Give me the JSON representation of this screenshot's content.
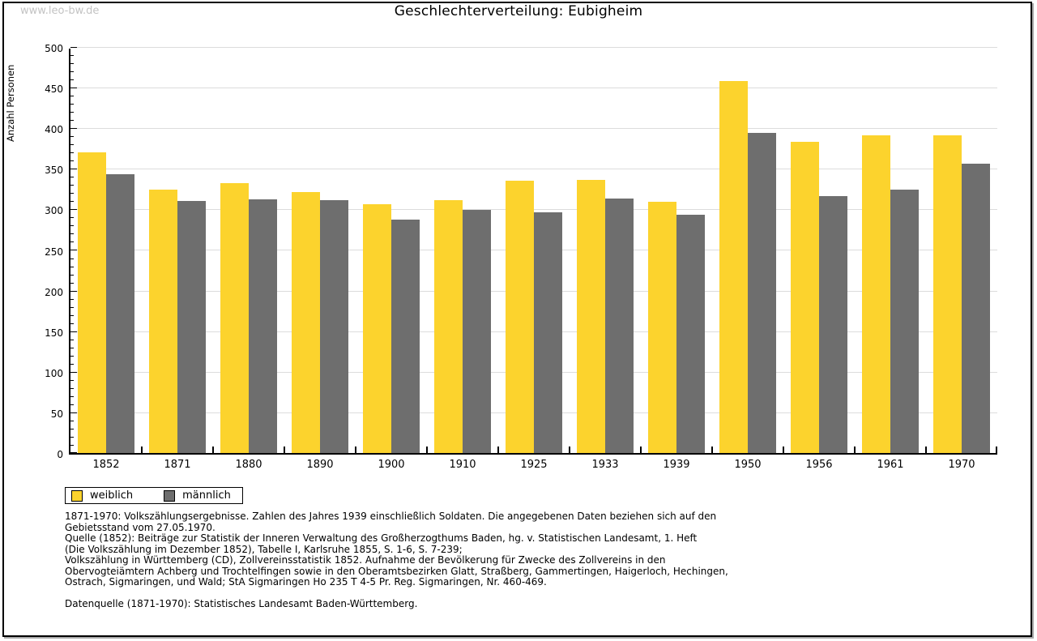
{
  "watermark": "www.leo-bw.de",
  "title": "Geschlechterverteilung: Eubigheim",
  "chart_data": {
    "type": "bar",
    "title": "Geschlechterverteilung: Eubigheim",
    "xlabel": "",
    "ylabel": "Anzahl Personen",
    "ylim": [
      0,
      500
    ],
    "ytick_step": 50,
    "yminor_step": 10,
    "grid": true,
    "legend_position": "bottom-left",
    "categories": [
      "1852",
      "1871",
      "1880",
      "1890",
      "1900",
      "1910",
      "1925",
      "1933",
      "1939",
      "1950",
      "1956",
      "1961",
      "1970"
    ],
    "series": [
      {
        "name": "weiblich",
        "color": "#fcd32d",
        "values": [
          370,
          324,
          332,
          321,
          306,
          311,
          335,
          336,
          309,
          458,
          383,
          391,
          391
        ]
      },
      {
        "name": "männlich",
        "color": "#6e6e6e",
        "values": [
          343,
          310,
          312,
          311,
          287,
          299,
          296,
          313,
          293,
          394,
          316,
          324,
          356
        ]
      }
    ]
  },
  "legend": {
    "items": [
      {
        "label": "weiblich",
        "color": "#fcd32d"
      },
      {
        "label": "männlich",
        "color": "#6e6e6e"
      }
    ]
  },
  "footer": {
    "lines": [
      "1871-1970: Volkszählungsergebnisse. Zahlen des Jahres 1939 einschließlich Soldaten. Die angegebenen Daten beziehen sich auf den",
      "Gebietsstand vom 27.05.1970.",
      "Quelle (1852): Beiträge zur Statistik der Inneren Verwaltung des Großherzogthums Baden, hg. v. Statistischen Landesamt, 1. Heft",
      "(Die Volkszählung im Dezember 1852), Tabelle I, Karlsruhe 1855, S. 1-6, S. 7-239;",
      "Volkszählung in Württemberg (CD), Zollvereinsstatistik 1852. Aufnahme der Bevölkerung für Zwecke des Zollvereins in den",
      "Obervogteiämtern Achberg und Trochtelfingen sowie in den Oberamtsbezirken Glatt, Straßberg, Gammertingen, Haigerloch, Hechingen,",
      "Ostrach, Sigmaringen, und Wald; StA Sigmaringen Ho 235 T 4-5 Pr. Reg. Sigmaringen, Nr. 460-469."
    ],
    "datasource": "Datenquelle (1871-1970): Statistisches Landesamt Baden-Württemberg."
  },
  "colors": {
    "weiblich": "#fcd32d",
    "männlich": "#6e6e6e",
    "gridline": "#dcdcdc",
    "axis": "#000000",
    "watermark": "#c3c3c3",
    "background": "#ffffff"
  }
}
